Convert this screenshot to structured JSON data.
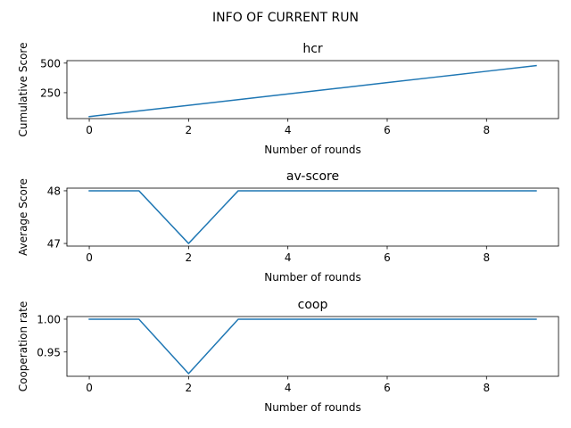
{
  "figure": {
    "suptitle": "INFO OF CURRENT RUN"
  },
  "colors": {
    "line": "#1f77b4",
    "axes": "#000000",
    "background": "#ffffff"
  },
  "chart_data": [
    {
      "type": "line",
      "title": "hcr",
      "xlabel": "Number of rounds",
      "ylabel": "Cumulative Score",
      "xlim": [
        -0.45,
        9.45
      ],
      "ylim": [
        31,
        521
      ],
      "xticks": [
        0,
        2,
        4,
        6,
        8
      ],
      "yticks": [
        250,
        500
      ],
      "grid": false,
      "x": [
        0,
        1,
        2,
        3,
        4,
        5,
        6,
        7,
        8,
        9
      ],
      "series": [
        {
          "values": [
            48,
            96,
            143,
            191,
            239,
            287,
            335,
            383,
            431,
            479
          ]
        }
      ]
    },
    {
      "type": "line",
      "title": "av-score",
      "xlabel": "Number of rounds",
      "ylabel": "Average Score",
      "xlim": [
        -0.45,
        9.45
      ],
      "ylim": [
        46.95,
        48.05
      ],
      "xticks": [
        0,
        2,
        4,
        6,
        8
      ],
      "yticks": [
        47,
        48
      ],
      "grid": false,
      "x": [
        0,
        1,
        2,
        3,
        4,
        5,
        6,
        7,
        8,
        9
      ],
      "series": [
        {
          "values": [
            48,
            48,
            47,
            48,
            48,
            48,
            48,
            48,
            48,
            48
          ]
        }
      ]
    },
    {
      "type": "line",
      "title": "coop",
      "xlabel": "Number of rounds",
      "ylabel": "Cooperation rate",
      "xlim": [
        -0.45,
        9.45
      ],
      "ylim": [
        0.913,
        1.004
      ],
      "xticks": [
        0,
        2,
        4,
        6,
        8
      ],
      "yticks": [
        0.95,
        1.0
      ],
      "ytick_decimals": 2,
      "grid": false,
      "x": [
        0,
        1,
        2,
        3,
        4,
        5,
        6,
        7,
        8,
        9
      ],
      "series": [
        {
          "values": [
            1.0,
            1.0,
            0.917,
            1.0,
            1.0,
            1.0,
            1.0,
            1.0,
            1.0,
            1.0
          ]
        }
      ]
    }
  ]
}
